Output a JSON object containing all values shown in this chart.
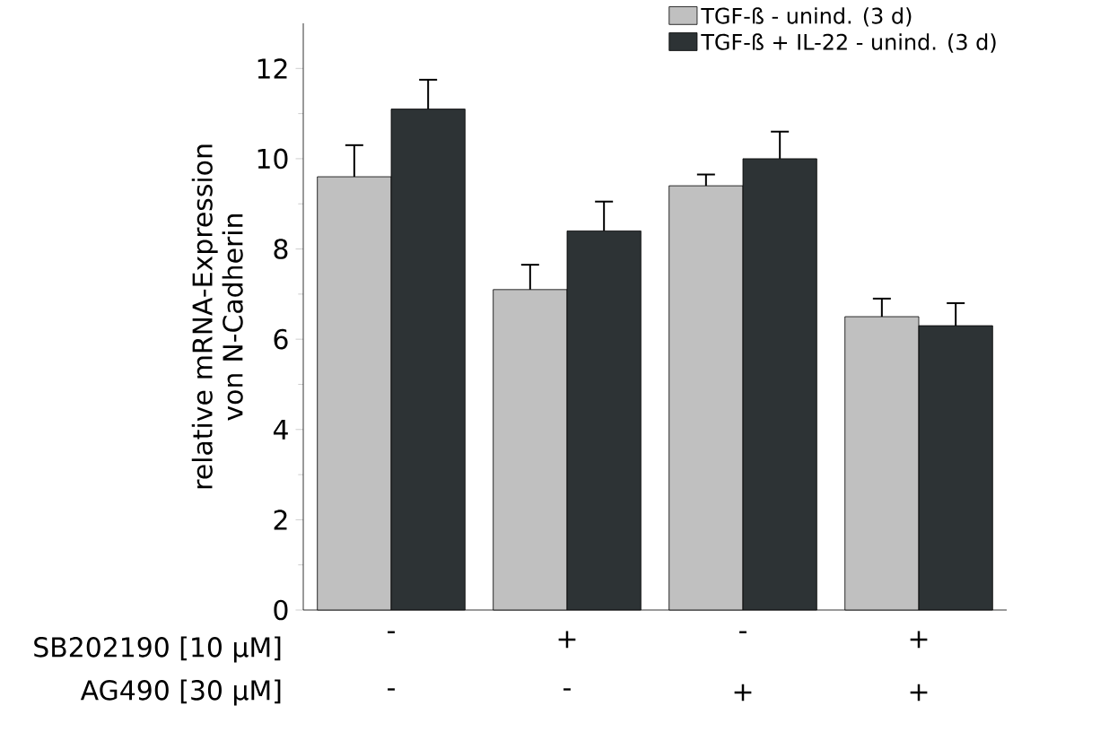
{
  "chart_data": {
    "type": "bar",
    "ylabel": "relative mRNA-Expression von N-Cadherin",
    "categories": [
      "-",
      "+",
      "-",
      "+"
    ],
    "series": [
      {
        "name": "TGF-ß - unind. (3 d)",
        "color": "#c0c0c0",
        "values": [
          9.6,
          7.1,
          9.4,
          6.5
        ],
        "errors": [
          0.7,
          0.55,
          0.25,
          0.4
        ]
      },
      {
        "name": "TGF-ß + IL-22 - unind. (3 d)",
        "color": "#2d3335",
        "values": [
          11.1,
          8.4,
          10.0,
          6.3
        ],
        "errors": [
          0.65,
          0.65,
          0.6,
          0.5
        ]
      }
    ],
    "ylim": [
      0,
      13
    ],
    "yticks": [
      0,
      2,
      4,
      6,
      8,
      10,
      12
    ],
    "grid": false,
    "legend": "top right",
    "annotations": [
      "SB202190 [10 µM]",
      "AG490 [30 µM]",
      "-",
      "-",
      "+",
      "+"
    ]
  }
}
